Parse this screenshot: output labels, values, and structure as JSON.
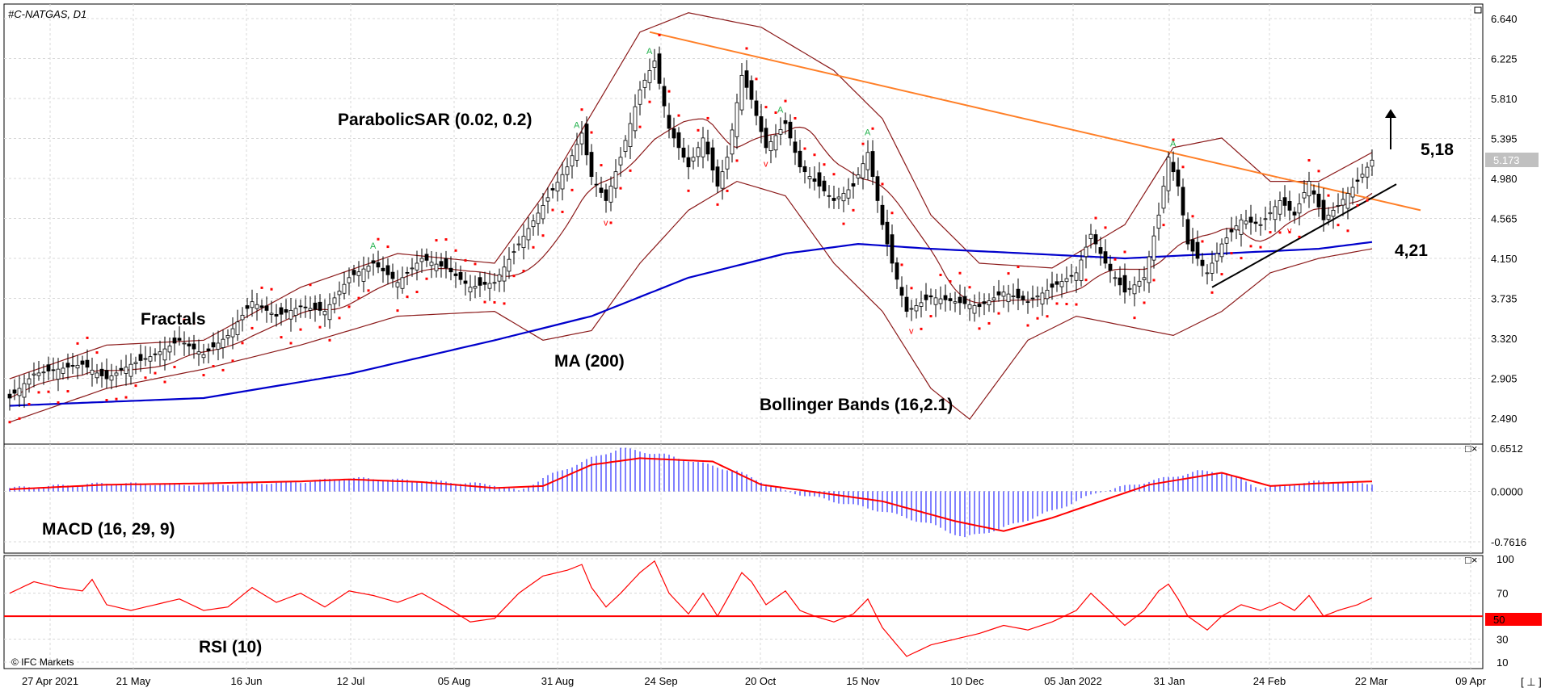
{
  "header": {
    "title": "#C-NATGAS, D1"
  },
  "colors": {
    "up": "#ffffff",
    "down": "#000000",
    "sar": "#ff0000",
    "bb": "#8b1a1a",
    "ma": "#0000cc",
    "trend": "#ff7f27",
    "macd_hist": "#0000ff",
    "macd_signal": "#ff0000",
    "rsi": "#ff0000",
    "rsi_mid": "#ff0000",
    "price_tag": "#c0c0c0"
  },
  "labels": {
    "sar": "ParabolicSAR (0.02, 0.2)",
    "fractals": "Fractals",
    "ma": "MA (200)",
    "bb": "Bollinger Bands (16,2.1)",
    "macd": "MACD (16, 29, 9)",
    "rsi": "RSI (10)",
    "target_up": "5,18",
    "target_down": "4,21",
    "copyright": "© IFC Markets",
    "rsi_mid_value": "50",
    "corner": "[ ⊥ ]"
  },
  "chart_data": [
    {
      "type": "candlestick",
      "title": "#C-NATGAS, D1",
      "y_ticks": [
        "6.640",
        "6.225",
        "5.810",
        "5.395",
        "4.980",
        "4.565",
        "4.150",
        "3.735",
        "3.320",
        "2.905",
        "2.490"
      ],
      "ylim": [
        2.35,
        6.8
      ],
      "x_ticks": [
        "27 Apr 2021",
        "21 May",
        "16 Jun",
        "12 Jul",
        "05 Aug",
        "31 Aug",
        "24 Sep",
        "20 Oct",
        "15 Nov",
        "10 Dec",
        "05 Jan 2022",
        "31 Jan",
        "24 Feb",
        "22 Mar",
        "09 Apr"
      ],
      "current_price": "5.173",
      "close_points": [
        [
          0,
          2.7
        ],
        [
          5,
          2.95
        ],
        [
          10,
          3.0
        ],
        [
          15,
          3.05
        ],
        [
          20,
          2.9
        ],
        [
          25,
          3.05
        ],
        [
          30,
          3.15
        ],
        [
          35,
          3.3
        ],
        [
          40,
          3.15
        ],
        [
          45,
          3.35
        ],
        [
          50,
          3.7
        ],
        [
          55,
          3.55
        ],
        [
          60,
          3.65
        ],
        [
          65,
          3.6
        ],
        [
          70,
          3.95
        ],
        [
          75,
          4.1
        ],
        [
          80,
          3.9
        ],
        [
          85,
          4.15
        ],
        [
          90,
          4.05
        ],
        [
          95,
          3.85
        ],
        [
          100,
          3.9
        ],
        [
          105,
          4.3
        ],
        [
          110,
          4.7
        ],
        [
          115,
          5.1
        ],
        [
          118,
          5.45
        ],
        [
          120,
          5.0
        ],
        [
          123,
          4.75
        ],
        [
          126,
          5.2
        ],
        [
          130,
          5.9
        ],
        [
          133,
          6.2
        ],
        [
          136,
          5.5
        ],
        [
          140,
          5.1
        ],
        [
          143,
          5.4
        ],
        [
          146,
          4.9
        ],
        [
          148,
          5.2
        ],
        [
          151,
          6.05
        ],
        [
          153,
          5.8
        ],
        [
          156,
          5.3
        ],
        [
          160,
          5.55
        ],
        [
          163,
          5.1
        ],
        [
          166,
          4.95
        ],
        [
          170,
          4.75
        ],
        [
          174,
          4.9
        ],
        [
          177,
          5.25
        ],
        [
          180,
          4.5
        ],
        [
          182,
          4.1
        ],
        [
          185,
          3.6
        ],
        [
          190,
          3.75
        ],
        [
          195,
          3.7
        ],
        [
          200,
          3.65
        ],
        [
          205,
          3.8
        ],
        [
          210,
          3.7
        ],
        [
          215,
          3.85
        ],
        [
          220,
          4.0
        ],
        [
          223,
          4.4
        ],
        [
          226,
          4.1
        ],
        [
          230,
          3.8
        ],
        [
          234,
          3.95
        ],
        [
          237,
          4.6
        ],
        [
          239,
          5.2
        ],
        [
          241,
          4.9
        ],
        [
          243,
          4.3
        ],
        [
          247,
          4.0
        ],
        [
          250,
          4.3
        ],
        [
          254,
          4.55
        ],
        [
          258,
          4.5
        ],
        [
          262,
          4.75
        ],
        [
          265,
          4.6
        ],
        [
          268,
          4.95
        ],
        [
          271,
          4.55
        ],
        [
          274,
          4.7
        ],
        [
          278,
          4.95
        ],
        [
          281,
          5.17
        ]
      ],
      "ma200_points": [
        [
          0,
          2.62
        ],
        [
          40,
          2.7
        ],
        [
          70,
          2.95
        ],
        [
          100,
          3.3
        ],
        [
          120,
          3.55
        ],
        [
          140,
          3.95
        ],
        [
          160,
          4.2
        ],
        [
          175,
          4.3
        ],
        [
          190,
          4.25
        ],
        [
          210,
          4.2
        ],
        [
          230,
          4.15
        ],
        [
          250,
          4.2
        ],
        [
          270,
          4.25
        ],
        [
          281,
          4.32
        ]
      ],
      "bb_upper_points": [
        [
          0,
          2.9
        ],
        [
          20,
          3.25
        ],
        [
          40,
          3.3
        ],
        [
          60,
          3.85
        ],
        [
          80,
          4.2
        ],
        [
          100,
          4.1
        ],
        [
          110,
          4.8
        ],
        [
          120,
          5.65
        ],
        [
          130,
          6.5
        ],
        [
          140,
          6.7
        ],
        [
          155,
          6.55
        ],
        [
          170,
          6.1
        ],
        [
          180,
          5.6
        ],
        [
          190,
          4.6
        ],
        [
          200,
          4.1
        ],
        [
          215,
          4.05
        ],
        [
          230,
          4.5
        ],
        [
          240,
          5.3
        ],
        [
          250,
          5.4
        ],
        [
          260,
          4.95
        ],
        [
          270,
          4.95
        ],
        [
          281,
          5.25
        ]
      ],
      "bb_lower_points": [
        [
          0,
          2.45
        ],
        [
          20,
          2.8
        ],
        [
          40,
          3.0
        ],
        [
          60,
          3.25
        ],
        [
          80,
          3.55
        ],
        [
          100,
          3.6
        ],
        [
          110,
          3.3
        ],
        [
          120,
          3.4
        ],
        [
          130,
          4.1
        ],
        [
          140,
          4.65
        ],
        [
          150,
          4.95
        ],
        [
          160,
          4.8
        ],
        [
          170,
          4.1
        ],
        [
          180,
          3.6
        ],
        [
          190,
          2.8
        ],
        [
          198,
          2.48
        ],
        [
          210,
          3.3
        ],
        [
          220,
          3.55
        ],
        [
          230,
          3.45
        ],
        [
          240,
          3.35
        ],
        [
          250,
          3.6
        ],
        [
          260,
          4.0
        ],
        [
          270,
          4.15
        ],
        [
          281,
          4.25
        ]
      ],
      "trendline_down": [
        [
          132,
          6.5
        ],
        [
          291,
          4.65
        ]
      ],
      "trendline_up": [
        [
          248,
          3.85
        ],
        [
          286,
          4.92
        ]
      ]
    },
    {
      "type": "bar",
      "title": "MACD (16, 29, 9)",
      "y_ticks": [
        "0.6512",
        "0.0000",
        "-0.7616"
      ],
      "ylim": [
        -0.7616,
        0.6512
      ],
      "hist_points": [
        [
          0,
          0.05
        ],
        [
          20,
          0.12
        ],
        [
          40,
          0.1
        ],
        [
          60,
          0.14
        ],
        [
          70,
          0.2
        ],
        [
          85,
          0.16
        ],
        [
          100,
          0.1
        ],
        [
          105,
          0.0
        ],
        [
          110,
          0.2
        ],
        [
          120,
          0.5
        ],
        [
          126,
          0.65
        ],
        [
          135,
          0.55
        ],
        [
          150,
          0.3
        ],
        [
          160,
          0.0
        ],
        [
          170,
          -0.15
        ],
        [
          180,
          -0.3
        ],
        [
          190,
          -0.5
        ],
        [
          197,
          -0.7
        ],
        [
          205,
          -0.55
        ],
        [
          215,
          -0.3
        ],
        [
          225,
          0.0
        ],
        [
          235,
          0.15
        ],
        [
          245,
          0.3
        ],
        [
          250,
          0.3
        ],
        [
          258,
          0.05
        ],
        [
          270,
          0.15
        ],
        [
          281,
          0.12
        ]
      ],
      "signal_points": [
        [
          0,
          0.03
        ],
        [
          20,
          0.1
        ],
        [
          40,
          0.12
        ],
        [
          60,
          0.15
        ],
        [
          70,
          0.18
        ],
        [
          85,
          0.14
        ],
        [
          100,
          0.05
        ],
        [
          110,
          0.08
        ],
        [
          120,
          0.4
        ],
        [
          130,
          0.5
        ],
        [
          145,
          0.45
        ],
        [
          155,
          0.1
        ],
        [
          165,
          0.0
        ],
        [
          180,
          -0.15
        ],
        [
          195,
          -0.45
        ],
        [
          205,
          -0.6
        ],
        [
          215,
          -0.4
        ],
        [
          225,
          -0.15
        ],
        [
          235,
          0.1
        ],
        [
          250,
          0.28
        ],
        [
          260,
          0.08
        ],
        [
          270,
          0.12
        ],
        [
          281,
          0.15
        ]
      ]
    },
    {
      "type": "line",
      "title": "RSI (10)",
      "y_ticks": [
        "100",
        "70",
        "50",
        "30",
        "10"
      ],
      "ylim": [
        5,
        105
      ],
      "level": 50,
      "points": [
        [
          0,
          70
        ],
        [
          5,
          80
        ],
        [
          10,
          75
        ],
        [
          15,
          72
        ],
        [
          17,
          82
        ],
        [
          20,
          60
        ],
        [
          25,
          55
        ],
        [
          30,
          60
        ],
        [
          35,
          65
        ],
        [
          40,
          55
        ],
        [
          45,
          58
        ],
        [
          50,
          75
        ],
        [
          55,
          62
        ],
        [
          60,
          70
        ],
        [
          65,
          58
        ],
        [
          70,
          72
        ],
        [
          75,
          68
        ],
        [
          80,
          62
        ],
        [
          85,
          70
        ],
        [
          90,
          58
        ],
        [
          95,
          45
        ],
        [
          100,
          48
        ],
        [
          105,
          70
        ],
        [
          110,
          85
        ],
        [
          115,
          90
        ],
        [
          118,
          95
        ],
        [
          120,
          75
        ],
        [
          123,
          58
        ],
        [
          126,
          70
        ],
        [
          130,
          88
        ],
        [
          133,
          98
        ],
        [
          136,
          70
        ],
        [
          140,
          52
        ],
        [
          143,
          70
        ],
        [
          146,
          50
        ],
        [
          148,
          65
        ],
        [
          151,
          88
        ],
        [
          153,
          80
        ],
        [
          156,
          60
        ],
        [
          160,
          72
        ],
        [
          163,
          55
        ],
        [
          166,
          50
        ],
        [
          170,
          45
        ],
        [
          174,
          52
        ],
        [
          177,
          65
        ],
        [
          180,
          40
        ],
        [
          182,
          30
        ],
        [
          185,
          15
        ],
        [
          190,
          25
        ],
        [
          195,
          30
        ],
        [
          200,
          35
        ],
        [
          205,
          42
        ],
        [
          210,
          38
        ],
        [
          215,
          45
        ],
        [
          220,
          55
        ],
        [
          223,
          70
        ],
        [
          226,
          58
        ],
        [
          230,
          42
        ],
        [
          234,
          55
        ],
        [
          237,
          72
        ],
        [
          239,
          78
        ],
        [
          241,
          65
        ],
        [
          243,
          50
        ],
        [
          247,
          38
        ],
        [
          250,
          50
        ],
        [
          254,
          60
        ],
        [
          258,
          55
        ],
        [
          262,
          62
        ],
        [
          265,
          55
        ],
        [
          268,
          68
        ],
        [
          271,
          50
        ],
        [
          274,
          55
        ],
        [
          278,
          60
        ],
        [
          281,
          66
        ]
      ]
    }
  ]
}
